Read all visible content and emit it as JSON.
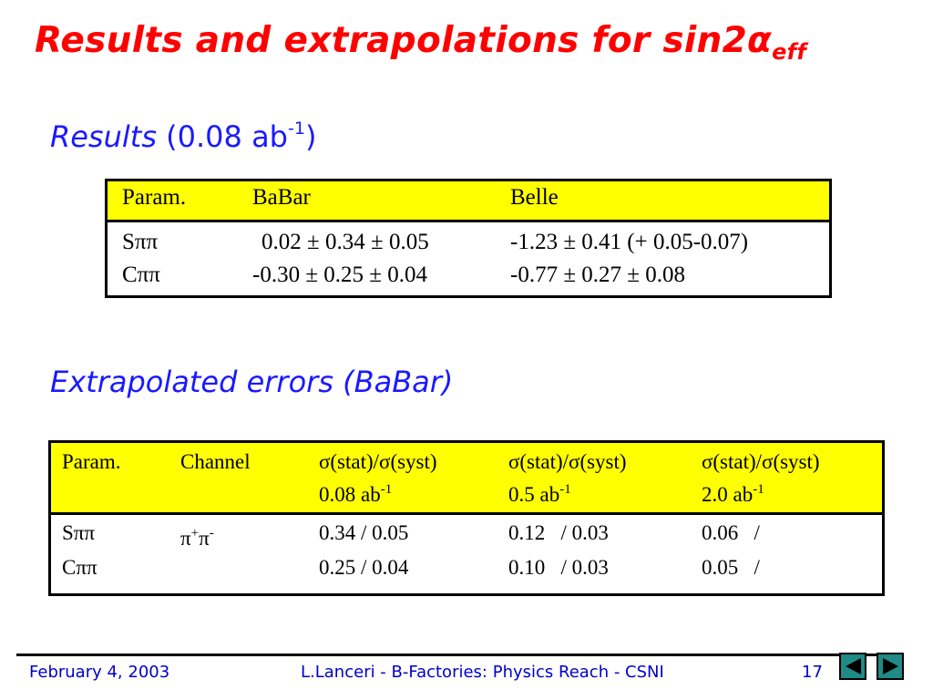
{
  "title": {
    "main": "Results and extrapolations for ",
    "sin": "sin2α",
    "sub": "eff"
  },
  "section1": {
    "label": "Results ",
    "paren_open": "(0.08 ab",
    "sup": "-1",
    "paren_close": ")"
  },
  "table1": {
    "headers": [
      "Param.",
      "BaBar",
      "Belle"
    ],
    "rows": [
      {
        "param": "Sππ",
        "babar": "0.02 ± 0.34 ± 0.05",
        "belle": "-1.23 ± 0.41 (+ 0.05-0.07)"
      },
      {
        "param": "Cππ",
        "babar": "-0.30 ± 0.25 ± 0.04",
        "belle": "-0.77 ± 0.27 ± 0.08"
      }
    ]
  },
  "section2": {
    "label": "Extrapolated errors (BaBar)"
  },
  "table2": {
    "headers": [
      {
        "line1": "Param."
      },
      {
        "line1": "Channel"
      },
      {
        "line1": "σ(stat)/σ(syst)",
        "line2": "0.08 ab",
        "sup": "-1"
      },
      {
        "line1": "σ(stat)/σ(syst)",
        "line2": "0.5 ab",
        "sup": "-1"
      },
      {
        "line1": "σ(stat)/σ(syst)",
        "line2": "2.0 ab",
        "sup": "-1"
      }
    ],
    "params": [
      "Sππ",
      "Cππ"
    ],
    "channel": {
      "base": "π",
      "sup1": "+",
      "mid": "π",
      "sup2": "-"
    },
    "rows": [
      {
        "c1": "0.34 / 0.05",
        "c2": "0.12   / 0.03",
        "c3": "0.06   /"
      },
      {
        "c1": "0.25 / 0.04",
        "c2": "0.10   / 0.03",
        "c3": "0.05   /"
      }
    ]
  },
  "footer": {
    "date": "February 4, 2003",
    "center": "L.Lanceri - B-Factories: Physics Reach - CSNI",
    "page": "17"
  },
  "nav": {
    "prev_icon": "triangle-left-icon",
    "next_icon": "triangle-right-icon",
    "button_color": "#1f8a86",
    "arrow_color": "#000000"
  },
  "colors": {
    "title": "#ff0000",
    "heading": "#1a1aff",
    "header_bg": "#ffff00",
    "footer_text": "#0000cc"
  }
}
